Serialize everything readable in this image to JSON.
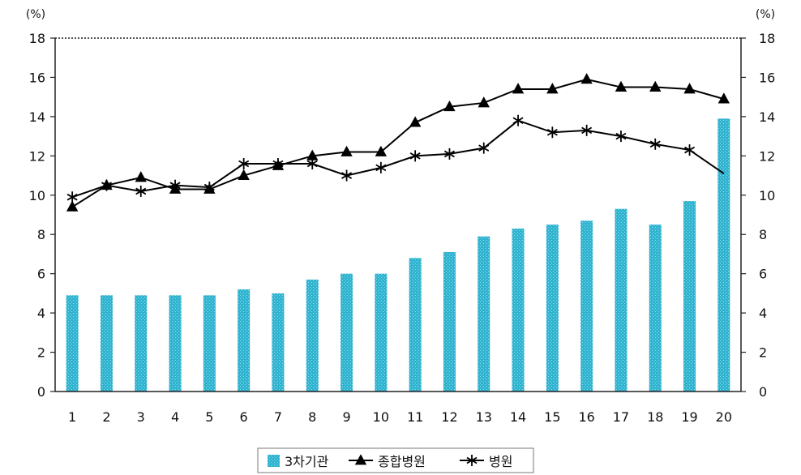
{
  "chart_data": {
    "type": "bar",
    "title": "",
    "xlabel": "",
    "ylabel": "",
    "y_unit_left": "(%)",
    "y_unit_right": "(%)",
    "ylim": [
      0,
      18
    ],
    "yticks": [
      0,
      2,
      4,
      6,
      8,
      10,
      12,
      14,
      16,
      18
    ],
    "categories": [
      "1",
      "2",
      "3",
      "4",
      "5",
      "6",
      "7",
      "8",
      "9",
      "10",
      "11",
      "12",
      "13",
      "14",
      "15",
      "16",
      "17",
      "18",
      "19",
      "20"
    ],
    "grid": false,
    "legend_position": "bottom-center",
    "series": [
      {
        "name": "3차기관",
        "type": "bar",
        "color": "#2fb3cf",
        "values": [
          4.9,
          4.9,
          4.9,
          4.9,
          4.9,
          5.2,
          5.0,
          5.7,
          6.0,
          6.0,
          6.8,
          7.1,
          7.9,
          8.3,
          8.5,
          8.7,
          9.3,
          8.5,
          9.7,
          13.9
        ]
      },
      {
        "name": "종합병원",
        "type": "line",
        "marker": "triangle",
        "color": "#000000",
        "values": [
          9.4,
          10.5,
          10.9,
          10.3,
          10.3,
          11.0,
          11.5,
          12.0,
          12.2,
          12.2,
          13.7,
          14.5,
          14.7,
          15.4,
          15.4,
          15.9,
          15.5,
          15.5,
          15.4,
          14.9
        ]
      },
      {
        "name": "병원",
        "type": "line",
        "marker": "asterisk",
        "color": "#000000",
        "values": [
          9.9,
          10.5,
          10.2,
          10.5,
          10.4,
          11.6,
          11.6,
          11.6,
          11.0,
          11.4,
          12.0,
          12.1,
          12.4,
          13.8,
          13.2,
          13.3,
          13.0,
          12.6,
          12.3,
          11.1
        ]
      }
    ]
  }
}
